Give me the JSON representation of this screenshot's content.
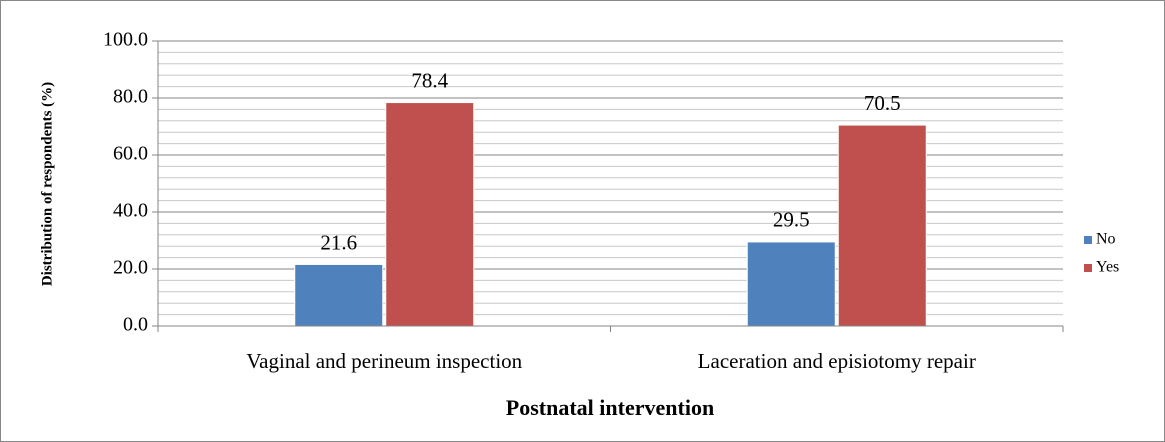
{
  "chart_data": {
    "type": "bar",
    "categories": [
      "Vaginal and perineum inspection",
      "Laceration and episiotomy repair"
    ],
    "series": [
      {
        "name": "No",
        "color": "#4f81bd",
        "values": [
          21.6,
          29.5
        ]
      },
      {
        "name": "Yes",
        "color": "#c0504d",
        "values": [
          78.4,
          70.5
        ]
      }
    ],
    "x_label": "Postnatal intervention",
    "y_label": "Distribution of respondents (%)",
    "ylim": [
      0,
      100
    ],
    "yticks": [
      {
        "value": 0,
        "label": "0.0"
      },
      {
        "value": 20,
        "label": "20.0"
      },
      {
        "value": 40,
        "label": "40.0"
      },
      {
        "value": 60,
        "label": "60.0"
      },
      {
        "value": 80,
        "label": "80.0"
      },
      {
        "value": 100,
        "label": "100.0"
      }
    ],
    "minor_yticks": [
      4,
      8,
      12,
      16,
      24,
      28,
      32,
      36,
      44,
      48,
      52,
      56,
      64,
      68,
      72,
      76,
      84,
      88,
      92,
      96
    ],
    "grid": true,
    "legend": "right"
  }
}
